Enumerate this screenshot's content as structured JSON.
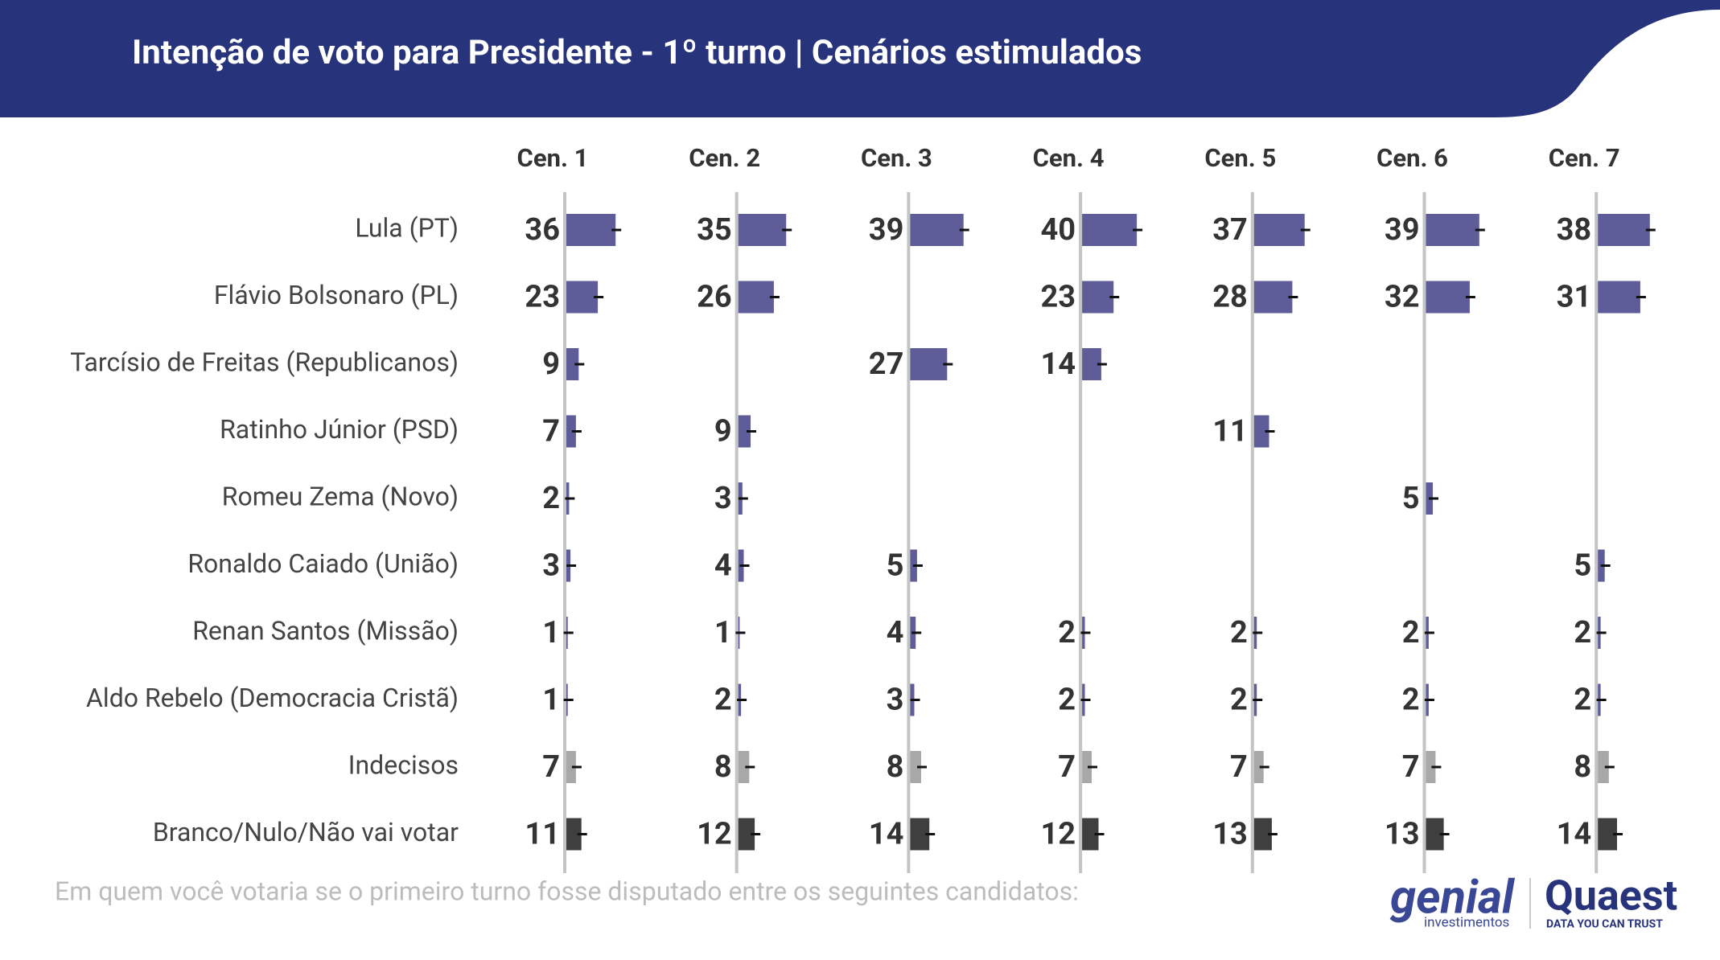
{
  "chart_data": {
    "type": "bar",
    "title": "Intenção de voto para Presidente - 1º turno | Cenários estimulados",
    "note": "Em quem você votaria se o primeiro turno fosse disputado entre os seguintes candidatos:",
    "categories": [
      "Lula (PT)",
      "Flávio Bolsonaro (PL)",
      "Tarcísio de Freitas (Republicanos)",
      "Ratinho Júnior (PSD)",
      "Romeu Zema (Novo)",
      "Ronaldo Caiado (União)",
      "Renan Santos (Missão)",
      "Aldo Rebelo (Democracia Cristã)",
      "Indecisos",
      "Branco/Nulo/Não vai votar"
    ],
    "colors": [
      "#5e5c99",
      "#5e5c99",
      "#5e5c99",
      "#5e5c99",
      "#5e5c99",
      "#5e5c99",
      "#5e5c99",
      "#5e5c99",
      "#a8a8a8",
      "#3f3f3f"
    ],
    "series": [
      {
        "name": "Cen. 1",
        "values": [
          36,
          23,
          9,
          7,
          2,
          3,
          1,
          1,
          7,
          11
        ]
      },
      {
        "name": "Cen. 2",
        "values": [
          35,
          26,
          null,
          9,
          3,
          4,
          1,
          2,
          8,
          12
        ]
      },
      {
        "name": "Cen. 3",
        "values": [
          39,
          null,
          27,
          null,
          null,
          5,
          4,
          3,
          8,
          14
        ]
      },
      {
        "name": "Cen. 4",
        "values": [
          40,
          23,
          14,
          null,
          null,
          null,
          2,
          2,
          7,
          12
        ]
      },
      {
        "name": "Cen. 5",
        "values": [
          37,
          28,
          null,
          11,
          null,
          null,
          2,
          2,
          7,
          13
        ]
      },
      {
        "name": "Cen. 6",
        "values": [
          39,
          32,
          null,
          null,
          5,
          null,
          2,
          2,
          7,
          13
        ]
      },
      {
        "name": "Cen. 7",
        "values": [
          38,
          31,
          null,
          null,
          null,
          5,
          2,
          2,
          8,
          14
        ]
      }
    ]
  },
  "branding": {
    "genial": "genial",
    "genial_sub": "investimentos",
    "quaest": "Quaest",
    "quaest_sub": "DATA YOU CAN TRUST"
  }
}
